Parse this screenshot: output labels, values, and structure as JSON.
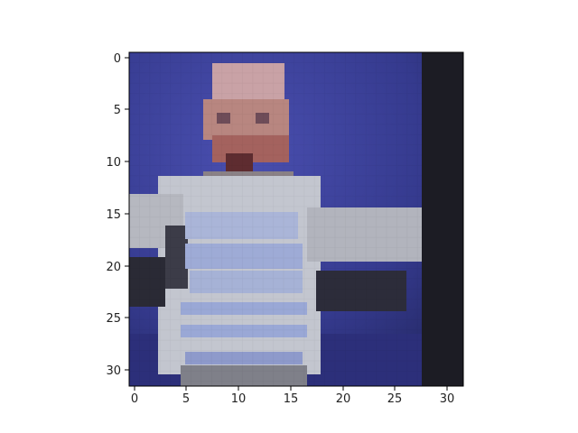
{
  "figure": {
    "kind": "imshow",
    "image_grid": [
      32,
      32
    ],
    "image_description": "pixelated low-resolution photo of a toddler in a light striped sweater against a blue background, with a dark vertical band on the right side",
    "x_ticks": [
      "0",
      "5",
      "10",
      "15",
      "20",
      "25",
      "30"
    ],
    "y_ticks": [
      "0",
      "5",
      "10",
      "15",
      "20",
      "25",
      "30"
    ],
    "colors": {
      "background_blue": "#3b3f96",
      "dark_band": "#1c1c24",
      "sweater_light": "#c4c8cf",
      "stripe_blue": "#9aa8d6",
      "skin": "#c89a92",
      "dark_arm": "#2a2a35"
    }
  }
}
